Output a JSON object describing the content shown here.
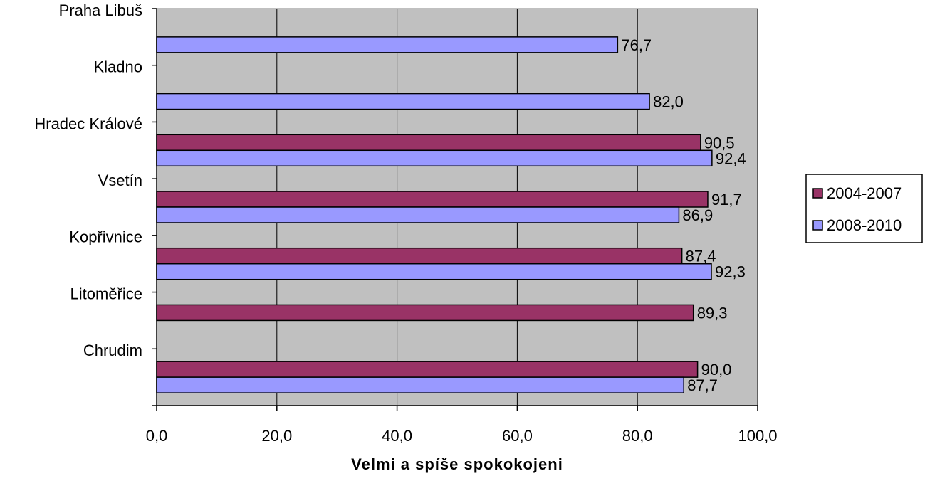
{
  "chart_data": {
    "type": "bar",
    "orientation": "horizontal",
    "categories": [
      "Praha Libuš",
      "Kladno",
      "Hradec Králové",
      "Vsetín",
      "Kopřivnice",
      "Litoměřice",
      "Chrudim"
    ],
    "series": [
      {
        "name": "2004-2007",
        "color": "#993366",
        "values": [
          null,
          null,
          90.5,
          91.7,
          87.4,
          89.3,
          90.0
        ],
        "labels": [
          "",
          "",
          "90,5",
          "91,7",
          "87,4",
          "89,3",
          "90,0"
        ]
      },
      {
        "name": "2008-2010",
        "color": "#9999ff",
        "values": [
          76.7,
          82.0,
          92.4,
          86.9,
          92.3,
          null,
          87.7
        ],
        "labels": [
          "76,7",
          "82,0",
          "92,4",
          "86,9",
          "92,3",
          "",
          "87,7"
        ]
      }
    ],
    "xlim": [
      0,
      100
    ],
    "xticks": [
      0,
      20,
      40,
      60,
      80,
      100
    ],
    "xtick_labels": [
      "0,0",
      "20,0",
      "40,0",
      "60,0",
      "80,0",
      "100,0"
    ],
    "xlabel": "Velmi a spíše spokokojeni",
    "ylabel": "",
    "title": "",
    "grid": true,
    "legend_position": "right",
    "plot_background": "#c0c0c0"
  }
}
